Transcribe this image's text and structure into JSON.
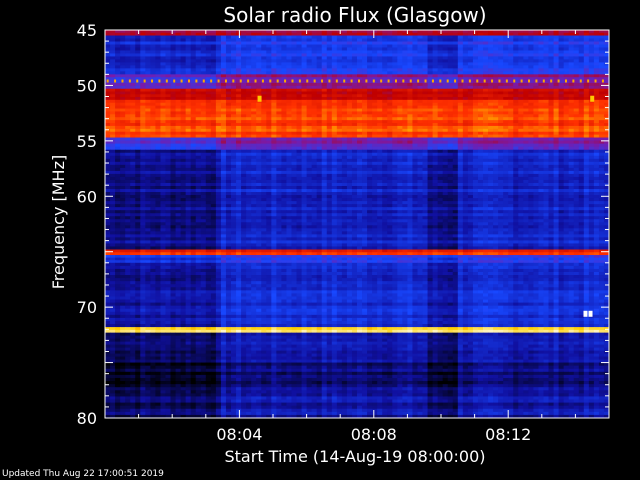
{
  "chart_data": {
    "type": "heatmap",
    "title": "Solar radio Flux (Glasgow)",
    "xlabel": "Start Time (14-Aug-19 08:00:00)",
    "ylabel": "Frequency [MHz]",
    "xlim_minutes": [
      0,
      15
    ],
    "ylim_mhz": [
      45,
      80
    ],
    "y_inverted": true,
    "x_ticks": [
      {
        "label": "08:04",
        "minute": 4
      },
      {
        "label": "08:08",
        "minute": 8
      },
      {
        "label": "08:12",
        "minute": 12
      }
    ],
    "y_ticks": [
      45,
      50,
      55,
      60,
      65,
      70,
      75,
      80
    ],
    "y_tick_labels": [
      "45",
      "50",
      "55",
      "60",
      "",
      "70",
      "",
      "80"
    ],
    "colormap": [
      "#000000",
      "#1010a0",
      "#1848ff",
      "#7a1aa8",
      "#c00000",
      "#ff3000",
      "#ffd000",
      "#ffffff"
    ],
    "bands": [
      {
        "from_mhz": 45.0,
        "to_mhz": 45.5,
        "intensity": 0.55
      },
      {
        "from_mhz": 45.5,
        "to_mhz": 49.0,
        "intensity": 0.28
      },
      {
        "from_mhz": 49.0,
        "to_mhz": 50.3,
        "intensity": 0.45
      },
      {
        "from_mhz": 50.3,
        "to_mhz": 51.3,
        "intensity": 0.6
      },
      {
        "from_mhz": 51.3,
        "to_mhz": 54.7,
        "intensity": 0.74
      },
      {
        "from_mhz": 54.7,
        "to_mhz": 55.8,
        "intensity": 0.42
      },
      {
        "from_mhz": 55.8,
        "to_mhz": 64.8,
        "intensity": 0.2
      },
      {
        "from_mhz": 64.8,
        "to_mhz": 65.3,
        "intensity": 0.68
      },
      {
        "from_mhz": 65.3,
        "to_mhz": 66.0,
        "intensity": 0.32
      },
      {
        "from_mhz": 66.0,
        "to_mhz": 71.8,
        "intensity": 0.22
      },
      {
        "from_mhz": 71.8,
        "to_mhz": 72.3,
        "intensity": 0.9
      },
      {
        "from_mhz": 72.3,
        "to_mhz": 75.0,
        "intensity": 0.18
      },
      {
        "from_mhz": 75.0,
        "to_mhz": 77.5,
        "intensity": 0.12
      },
      {
        "from_mhz": 77.5,
        "to_mhz": 80.0,
        "intensity": 0.16
      }
    ],
    "dark_time_ranges_minutes": [
      [
        0.0,
        3.5
      ],
      [
        9.6,
        10.5
      ]
    ],
    "bursts": [
      {
        "minute": 4.6,
        "mhz": 51.2,
        "intensity": 0.85
      },
      {
        "minute": 14.5,
        "mhz": 51.2,
        "intensity": 0.85
      },
      {
        "minute": 14.3,
        "mhz": 70.6,
        "intensity": 1.0
      },
      {
        "minute": 14.45,
        "mhz": 70.6,
        "intensity": 1.0
      }
    ],
    "dotted_line_mhz": 49.6
  },
  "footer": "Updated Thu Aug 22 17:00:51 2019"
}
